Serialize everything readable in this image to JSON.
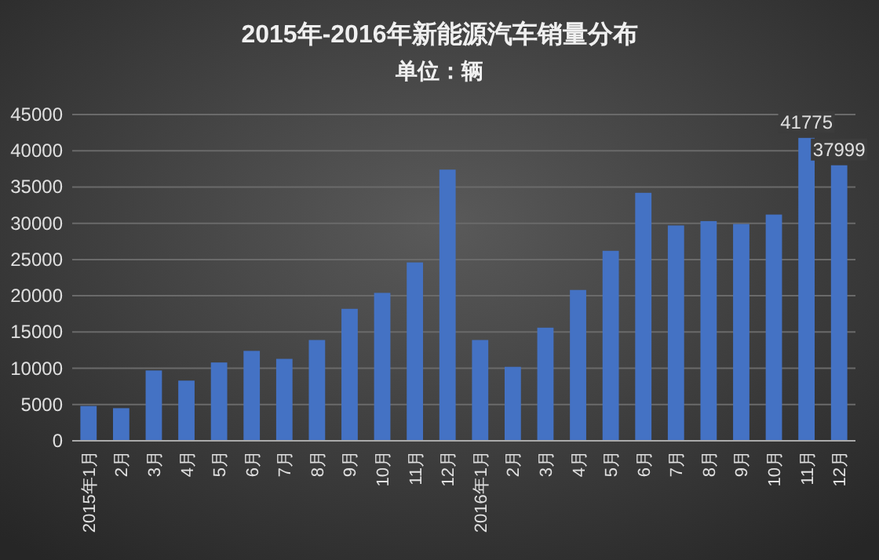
{
  "chart_data": {
    "type": "bar",
    "title": "2015年-2016年新能源汽车销量分布",
    "subtitle": "单位：辆",
    "categories": [
      "2015年1月",
      "2月",
      "3月",
      "4月",
      "5月",
      "6月",
      "7月",
      "8月",
      "9月",
      "10月",
      "11月",
      "12月",
      "2016年1月",
      "2月",
      "3月",
      "4月",
      "5月",
      "6月",
      "7月",
      "8月",
      "9月",
      "10月",
      "11月",
      "12月"
    ],
    "values": [
      4800,
      4500,
      9700,
      8300,
      10800,
      12400,
      11300,
      13900,
      18200,
      20400,
      24600,
      37400,
      13900,
      10200,
      15600,
      20800,
      26200,
      34200,
      29700,
      30300,
      29900,
      31200,
      41775,
      37999
    ],
    "value_labels": [
      null,
      null,
      null,
      null,
      null,
      null,
      null,
      null,
      null,
      null,
      null,
      null,
      null,
      null,
      null,
      null,
      null,
      null,
      null,
      null,
      null,
      null,
      "41775",
      "37999"
    ],
    "color": "#4472c4",
    "ylim": [
      0,
      45000
    ],
    "yticks": [
      0,
      5000,
      10000,
      15000,
      20000,
      25000,
      30000,
      35000,
      40000,
      45000
    ],
    "grid": "y"
  }
}
